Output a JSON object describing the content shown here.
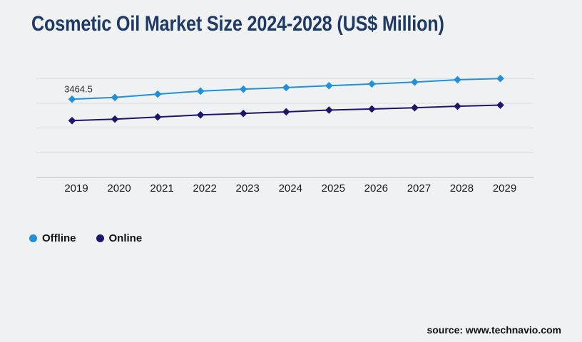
{
  "page": {
    "source": "source: www.technavio.com"
  },
  "colors": {
    "background": "#f0f1f3",
    "title": "#1d3a66",
    "offline": "#2090da",
    "online": "#1c156b",
    "gridline": "#d9dadc",
    "axis_line": "#c5c6c8",
    "tick_text": "#1a1a1a",
    "data_label": "#2b2b2b"
  },
  "chart_data": {
    "type": "line",
    "title": "Cosmetic Oil Market Size 2024-2028 (US$ Million)",
    "categories": [
      "2019",
      "2020",
      "2021",
      "2022",
      "2023",
      "2024",
      "2025",
      "2026",
      "2027",
      "2028",
      "2029"
    ],
    "series": [
      {
        "name": "Offline",
        "color": "#2090da",
        "values": [
          3464.5,
          3535,
          3670,
          3790,
          3870,
          3935,
          4010,
          4080,
          4155,
          4250,
          4300
        ]
      },
      {
        "name": "Online",
        "color": "#1c156b",
        "values": [
          2600,
          2660,
          2745,
          2830,
          2890,
          2955,
          3025,
          3070,
          3120,
          3180,
          3225
        ]
      }
    ],
    "annotations": [
      {
        "series": 0,
        "index": 0,
        "text": "3464.5"
      }
    ],
    "ylim": [
      300,
      4300
    ],
    "gridlines": 5,
    "y_axis_labels_visible": false,
    "grid": "horizontal",
    "marker": "diamond",
    "legend_position": "bottom-left",
    "xlabel": "",
    "ylabel": ""
  }
}
